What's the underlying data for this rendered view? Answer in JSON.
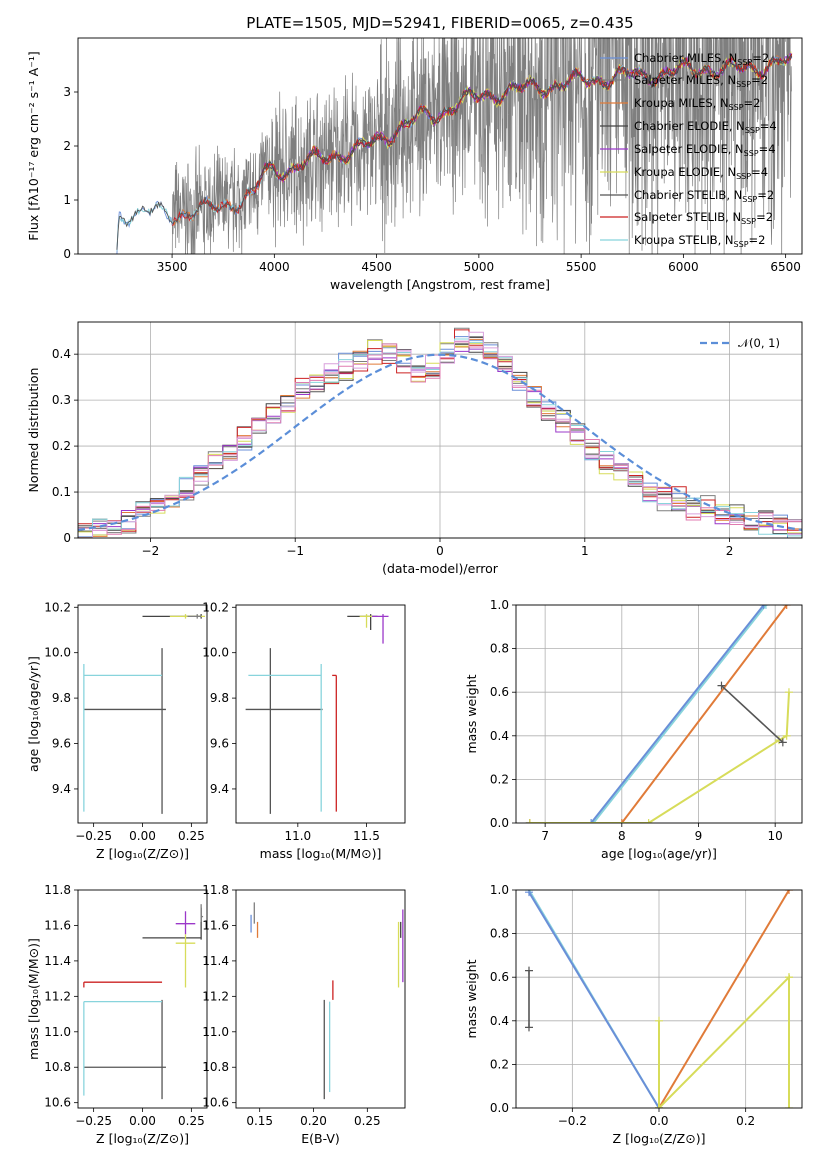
{
  "figure_title": "PLATE=1505, MJD=52941, FIBERID=0065, z=0.435",
  "colors": {
    "chabrier_miles": "#6a8fd8",
    "salpeter_miles": "#7f7f7f",
    "kroupa_miles": "#e07b39",
    "chabrier_elodie": "#444444",
    "salpeter_elodie": "#9b38c9",
    "kroupa_elodie": "#d7dc5a",
    "chabrier_stelib": "#555555",
    "salpeter_stelib": "#cc2222",
    "kroupa_stelib": "#88d4dc",
    "normal_curve": "#5b8ed8",
    "grid": "#b0b0b0"
  },
  "chart_data": [
    {
      "id": "spectrum",
      "type": "line",
      "title": "PLATE=1505, MJD=52941, FIBERID=0065, z=0.435",
      "xlabel": "wavelength [Angstrom, rest frame]",
      "ylabel": "Flux [fλ10⁻¹⁷ erg cm⁻² s⁻¹ A⁻¹]",
      "xlim": [
        3040,
        6580
      ],
      "ylim": [
        0,
        4
      ],
      "xticks": [
        3500,
        4000,
        4500,
        5000,
        5500,
        6000,
        6500
      ],
      "yticks": [
        0,
        1,
        2,
        3
      ],
      "grid": false,
      "legend_position": "top-right",
      "legend": [
        {
          "label": "Chabrier MILES, N",
          "sub": "SSP",
          "suffix": "=2",
          "color_key": "chabrier_miles"
        },
        {
          "label": "Salpeter MILES, N",
          "sub": "SSP",
          "suffix": "=2",
          "color_key": "salpeter_miles"
        },
        {
          "label": "Kroupa MILES, N",
          "sub": "SSP",
          "suffix": "=2",
          "color_key": "kroupa_miles"
        },
        {
          "label": "Chabrier ELODIE, N",
          "sub": "SSP",
          "suffix": "=4",
          "color_key": "chabrier_elodie"
        },
        {
          "label": "Salpeter ELODIE, N",
          "sub": "SSP",
          "suffix": "=4",
          "color_key": "salpeter_elodie"
        },
        {
          "label": "Kroupa ELODIE, N",
          "sub": "SSP",
          "suffix": "=4",
          "color_key": "kroupa_elodie"
        },
        {
          "label": "Chabrier STELIB, N",
          "sub": "SSP",
          "suffix": "=2",
          "color_key": "chabrier_stelib"
        },
        {
          "label": "Salpeter STELIB, N",
          "sub": "SSP",
          "suffix": "=2",
          "color_key": "salpeter_stelib"
        },
        {
          "label": "Kroupa STELIB, N",
          "sub": "SSP",
          "suffix": "=2",
          "color_key": "kroupa_stelib"
        }
      ],
      "continuum_points": [
        [
          3230,
          0.0
        ],
        [
          3240,
          0.72
        ],
        [
          3300,
          0.76
        ],
        [
          3400,
          0.78
        ],
        [
          3500,
          0.72
        ],
        [
          3600,
          0.78
        ],
        [
          3700,
          0.85
        ],
        [
          3800,
          0.95
        ],
        [
          3900,
          1.1
        ],
        [
          3950,
          1.5
        ],
        [
          4000,
          1.55
        ],
        [
          4100,
          1.6
        ],
        [
          4200,
          1.75
        ],
        [
          4300,
          1.85
        ],
        [
          4400,
          1.9
        ],
        [
          4500,
          2.1
        ],
        [
          4600,
          2.3
        ],
        [
          4700,
          2.5
        ],
        [
          4800,
          2.6
        ],
        [
          4900,
          2.8
        ],
        [
          5000,
          2.9
        ],
        [
          5100,
          3.0
        ],
        [
          5200,
          3.05
        ],
        [
          5300,
          3.1
        ],
        [
          5400,
          3.15
        ],
        [
          5500,
          3.2
        ],
        [
          5600,
          3.25
        ],
        [
          5700,
          3.3
        ],
        [
          5800,
          3.3
        ],
        [
          5900,
          3.35
        ],
        [
          6000,
          3.4
        ],
        [
          6100,
          3.45
        ],
        [
          6200,
          3.4
        ],
        [
          6300,
          3.45
        ],
        [
          6400,
          3.5
        ],
        [
          6530,
          3.55
        ]
      ],
      "data_noise_regions": [
        [
          3500,
          4000,
          0.9
        ],
        [
          4000,
          4500,
          1.2
        ],
        [
          4500,
          5000,
          1.6
        ],
        [
          5000,
          5500,
          2.5
        ],
        [
          5500,
          6530,
          3.0
        ]
      ]
    },
    {
      "id": "residuals",
      "type": "bar",
      "xlabel": "(data-model)/error",
      "ylabel": "Normed distribution",
      "xlim": [
        -2.5,
        2.5
      ],
      "ylim": [
        0,
        0.47
      ],
      "xticks": [
        -2,
        -1,
        0,
        1,
        2
      ],
      "yticks": [
        0.0,
        0.1,
        0.2,
        0.3,
        0.4
      ],
      "grid": true,
      "legend_position": "top-right",
      "legend": [
        {
          "label": "𝒩(0, 1)",
          "color_key": "normal_curve",
          "style": "dashed"
        }
      ],
      "bin_edges_step": 0.1,
      "bin_start": -2.6,
      "series_values": [
        [
          0.01,
          0.01,
          0.02,
          0.03,
          0.04,
          0.06,
          0.08,
          0.09,
          0.11,
          0.14,
          0.16,
          0.19,
          0.21,
          0.24,
          0.27,
          0.3,
          0.32,
          0.34,
          0.36,
          0.38,
          0.39,
          0.4,
          0.41,
          0.39,
          0.37,
          0.38,
          0.39,
          0.42,
          0.43,
          0.4,
          0.38,
          0.34,
          0.31,
          0.28,
          0.25,
          0.23,
          0.19,
          0.17,
          0.15,
          0.12,
          0.1,
          0.09,
          0.08,
          0.07,
          0.06,
          0.05,
          0.05,
          0.04,
          0.03,
          0.03,
          0.02,
          0.02
        ],
        [
          0.0,
          0.01,
          0.02,
          0.03,
          0.03,
          0.05,
          0.07,
          0.09,
          0.1,
          0.13,
          0.17,
          0.2,
          0.22,
          0.25,
          0.27,
          0.29,
          0.33,
          0.35,
          0.34,
          0.36,
          0.38,
          0.41,
          0.4,
          0.38,
          0.36,
          0.37,
          0.41,
          0.44,
          0.42,
          0.41,
          0.37,
          0.35,
          0.3,
          0.27,
          0.26,
          0.22,
          0.2,
          0.16,
          0.14,
          0.13,
          0.11,
          0.08,
          0.09,
          0.06,
          0.07,
          0.05,
          0.05,
          0.04,
          0.04,
          0.03,
          0.02,
          0.02
        ]
      ],
      "normal_curve": {
        "mean": 0,
        "std": 1
      }
    },
    {
      "id": "Z-age",
      "type": "scatter",
      "xlabel": "Z [log₁₀(Z/Z⊙)]",
      "ylabel": "age  [log₁₀(age/yr)]",
      "xlim": [
        -0.33,
        0.33
      ],
      "ylim": [
        9.25,
        10.21
      ],
      "xticks": [
        -0.25,
        0.0,
        0.25
      ],
      "xticklabels": [
        "−0.25",
        "0.00",
        "0.25"
      ],
      "yticks": [
        9.4,
        9.6,
        9.8,
        10.0,
        10.2
      ],
      "yticklabels": [
        "9.4",
        "9.6",
        "9.8",
        "10.0",
        "10.2"
      ],
      "grid": false,
      "errorbars": [
        {
          "x": 0.1,
          "y": 9.75,
          "xerr": [
            0.4,
            0.02
          ],
          "yerr": [
            0.46,
            0.27
          ],
          "color_key": "chabrier_stelib"
        },
        {
          "x": -0.3,
          "y": 9.9,
          "xerr": [
            0.0,
            0.4
          ],
          "yerr": [
            0.6,
            0.05
          ],
          "color_key": "kroupa_stelib"
        },
        {
          "x": 0.3,
          "y": 10.16,
          "xerr": [
            0.3,
            0.0
          ],
          "yerr": [
            0.01,
            0.01
          ],
          "color_key": "chabrier_elodie"
        },
        {
          "x": 0.22,
          "y": 10.16,
          "xerr": [
            0.08,
            0.1
          ],
          "yerr": [
            0.01,
            0.01
          ],
          "color_key": "kroupa_elodie"
        },
        {
          "x": 0.28,
          "y": 10.16,
          "xerr": [
            0.05,
            0.02
          ],
          "yerr": [
            0.01,
            0.01
          ],
          "color_key": "salpeter_miles"
        }
      ]
    },
    {
      "id": "mass-age",
      "type": "scatter",
      "xlabel": "mass [log₁₀(M/M⊙)]",
      "ylabel": "",
      "xlim": [
        10.55,
        11.78
      ],
      "ylim": [
        9.25,
        10.21
      ],
      "xticks": [
        11.0,
        11.5
      ],
      "xticklabels": [
        "11.0",
        "11.5"
      ],
      "yticks": [
        9.4,
        9.6,
        9.8,
        10.0,
        10.2
      ],
      "yticklabels": [
        "9.4",
        "9.6",
        "9.8",
        "10.0",
        "10.2"
      ],
      "grid": false,
      "errorbars": [
        {
          "x": 10.8,
          "y": 9.75,
          "xerr": [
            0.18,
            0.38
          ],
          "yerr": [
            0.46,
            0.27
          ],
          "color_key": "chabrier_stelib"
        },
        {
          "x": 11.17,
          "y": 9.9,
          "xerr": [
            0.53,
            0.0
          ],
          "yerr": [
            0.6,
            0.05
          ],
          "color_key": "kroupa_stelib"
        },
        {
          "x": 11.28,
          "y": 9.9,
          "xerr": [
            0.03,
            0.0
          ],
          "yerr": [
            0.6,
            0.0
          ],
          "color_key": "salpeter_stelib"
        },
        {
          "x": 11.53,
          "y": 10.16,
          "xerr": [
            0.17,
            0.05
          ],
          "yerr": [
            0.06,
            0.01
          ],
          "color_key": "chabrier_elodie"
        },
        {
          "x": 11.62,
          "y": 10.16,
          "xerr": [
            0.08,
            0.04
          ],
          "yerr": [
            0.12,
            0.01
          ],
          "color_key": "salpeter_elodie"
        },
        {
          "x": 11.5,
          "y": 10.16,
          "xerr": [
            0.05,
            0.04
          ],
          "yerr": [
            0.05,
            0.01
          ],
          "color_key": "kroupa_elodie"
        }
      ]
    },
    {
      "id": "age-weight",
      "type": "line",
      "xlabel": "age  [log₁₀(age/yr)]",
      "ylabel": "mass weight",
      "xlim": [
        6.62,
        10.35
      ],
      "ylim": [
        0.0,
        1.0
      ],
      "xticks": [
        7,
        8,
        9,
        10
      ],
      "xticklabels": [
        "7",
        "8",
        "9",
        "10"
      ],
      "yticks": [
        0.0,
        0.2,
        0.4,
        0.6,
        0.8,
        1.0
      ],
      "yticklabels": [
        "0.0",
        "0.2",
        "0.4",
        "0.6",
        "0.8",
        "1.0"
      ],
      "grid": true,
      "series": [
        {
          "color_key": "kroupa_stelib",
          "x": [
            6.8,
            7.63,
            9.88
          ],
          "y": [
            0.0,
            0.0,
            1.0
          ]
        },
        {
          "color_key": "chabrier_miles",
          "x": [
            6.8,
            7.6,
            9.85
          ],
          "y": [
            0.0,
            0.0,
            1.0
          ]
        },
        {
          "color_key": "kroupa_miles",
          "x": [
            6.8,
            8.0,
            10.15
          ],
          "y": [
            0.0,
            0.0,
            1.0
          ]
        },
        {
          "color_key": "kroupa_elodie",
          "x": [
            6.8,
            8.35,
            10.05,
            10.15,
            10.18
          ],
          "y": [
            0.0,
            0.0,
            0.38,
            0.4,
            0.6
          ]
        },
        {
          "color_key": "chabrier_stelib",
          "x": [
            9.3,
            10.1
          ],
          "y": [
            0.63,
            0.37
          ]
        }
      ]
    },
    {
      "id": "Z-mass",
      "type": "scatter",
      "xlabel": "Z [log₁₀(Z/Z⊙)]",
      "ylabel": "mass [log₁₀(M/M⊙)]",
      "xlim": [
        -0.33,
        0.33
      ],
      "ylim": [
        10.57,
        11.8
      ],
      "xticks": [
        -0.25,
        0.0,
        0.25
      ],
      "xticklabels": [
        "−0.25",
        "0.00",
        "0.25"
      ],
      "yticks": [
        10.6,
        10.8,
        11.0,
        11.2,
        11.4,
        11.6,
        11.8
      ],
      "yticklabels": [
        "10.6",
        "10.8",
        "11.0",
        "11.2",
        "11.4",
        "11.6",
        "11.8"
      ],
      "grid": false,
      "errorbars": [
        {
          "x": 0.1,
          "y": 10.8,
          "xerr": [
            0.4,
            0.02
          ],
          "yerr": [
            0.18,
            0.38
          ],
          "color_key": "chabrier_stelib"
        },
        {
          "x": -0.3,
          "y": 11.17,
          "xerr": [
            0.0,
            0.4
          ],
          "yerr": [
            0.53,
            0.0
          ],
          "color_key": "kroupa_stelib"
        },
        {
          "x": -0.3,
          "y": 11.28,
          "xerr": [
            0.0,
            0.4
          ],
          "yerr": [
            0.03,
            0.0
          ],
          "color_key": "salpeter_stelib"
        },
        {
          "x": 0.3,
          "y": 11.53,
          "xerr": [
            0.3,
            0.0
          ],
          "yerr": [
            0.01,
            0.17
          ],
          "color_key": "chabrier_elodie"
        },
        {
          "x": 0.22,
          "y": 11.61,
          "xerr": [
            0.05,
            0.05
          ],
          "yerr": [
            0.06,
            0.07
          ],
          "color_key": "salpeter_elodie"
        },
        {
          "x": 0.22,
          "y": 11.5,
          "xerr": [
            0.05,
            0.05
          ],
          "yerr": [
            0.25,
            0.05
          ],
          "color_key": "kroupa_elodie"
        },
        {
          "x": 0.3,
          "y": 11.65,
          "xerr": [
            0.0,
            0.01
          ],
          "yerr": [
            0.03,
            0.07
          ],
          "color_key": "salpeter_miles"
        }
      ]
    },
    {
      "id": "ebv-mass",
      "type": "scatter",
      "xlabel": "E(B-V)",
      "ylabel": "",
      "xlim": [
        0.128,
        0.285
      ],
      "ylim": [
        10.57,
        11.8
      ],
      "xticks": [
        0.15,
        0.2,
        0.25
      ],
      "xticklabels": [
        "0.15",
        "0.20",
        "0.25"
      ],
      "yticks": [
        10.6,
        10.8,
        11.0,
        11.2,
        11.4,
        11.6,
        11.8
      ],
      "yticklabels": [
        "10.6",
        "10.8",
        "11.0",
        "11.2",
        "11.4",
        "11.6",
        "11.8"
      ],
      "grid": false,
      "vlines": [
        {
          "x": 0.142,
          "y": [
            11.56,
            11.66
          ],
          "color_key": "chabrier_miles"
        },
        {
          "x": 0.145,
          "y": [
            11.61,
            11.73
          ],
          "color_key": "salpeter_miles"
        },
        {
          "x": 0.148,
          "y": [
            11.53,
            11.62
          ],
          "color_key": "kroupa_miles"
        },
        {
          "x": 0.21,
          "y": [
            10.62,
            11.18
          ],
          "color_key": "chabrier_stelib"
        },
        {
          "x": 0.215,
          "y": [
            10.66,
            11.17
          ],
          "color_key": "kroupa_stelib"
        },
        {
          "x": 0.218,
          "y": [
            11.18,
            11.29
          ],
          "color_key": "salpeter_stelib"
        },
        {
          "x": 0.279,
          "y": [
            11.25,
            11.62
          ],
          "color_key": "kroupa_elodie"
        },
        {
          "x": 0.281,
          "y": [
            11.53,
            11.62
          ],
          "color_key": "chabrier_elodie"
        },
        {
          "x": 0.283,
          "y": [
            11.28,
            11.69
          ],
          "color_key": "salpeter_elodie"
        }
      ]
    },
    {
      "id": "Z-weight",
      "type": "line",
      "xlabel": "Z [log₁₀(Z/Z⊙)]",
      "ylabel": "mass weight",
      "xlim": [
        -0.33,
        0.33
      ],
      "ylim": [
        0.0,
        1.0
      ],
      "xticks": [
        -0.2,
        0.0,
        0.2
      ],
      "xticklabels": [
        "−0.2",
        "0.0",
        "0.2"
      ],
      "yticks": [
        0.0,
        0.2,
        0.4,
        0.6,
        0.8,
        1.0
      ],
      "yticklabels": [
        "0.0",
        "0.2",
        "0.4",
        "0.6",
        "0.8",
        "1.0"
      ],
      "grid": true,
      "series": [
        {
          "color_key": "kroupa_stelib",
          "x": [
            -0.3,
            0.0
          ],
          "y": [
            1.0,
            0.0
          ]
        },
        {
          "color_key": "chabrier_miles",
          "x": [
            -0.3,
            0.0
          ],
          "y": [
            0.99,
            0.0
          ]
        },
        {
          "color_key": "kroupa_miles",
          "x": [
            0.0,
            0.3
          ],
          "y": [
            0.0,
            1.0
          ]
        },
        {
          "color_key": "kroupa_elodie",
          "x": [
            0.0,
            0.0,
            0.0,
            0.3,
            0.3,
            0.3
          ],
          "y": [
            0.0,
            0.4,
            0.0,
            0.6,
            0.0,
            0.6
          ]
        },
        {
          "color_key": "chabrier_stelib",
          "x": [
            -0.3,
            -0.3
          ],
          "y": [
            0.37,
            0.63
          ]
        }
      ]
    }
  ]
}
